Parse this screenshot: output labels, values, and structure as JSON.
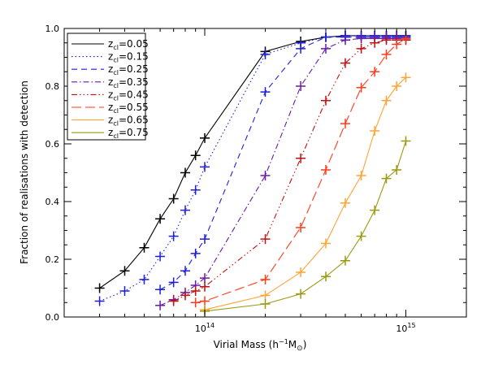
{
  "chart_data": {
    "type": "line",
    "xlabel_prefix": "Virial Mass (h",
    "xlabel_exp": "−1",
    "xlabel_unit": "M",
    "xlabel_sub": "⊙",
    "xlabel_suffix": ")",
    "ylabel": "Fraction of realisations with detection",
    "xscale": "log",
    "xlim": [
      20000000000000,
      2000000000000000
    ],
    "ylim": [
      0,
      1
    ],
    "yticks": [
      "0.0",
      "0.2",
      "0.4",
      "0.6",
      "0.8",
      "1.0"
    ],
    "xticks": [
      {
        "value": 100000000000000,
        "base": "10",
        "exp": "14"
      },
      {
        "value": 1000000000000000,
        "base": "10",
        "exp": "15"
      }
    ],
    "legend_position": "top-left",
    "legend_var": "z",
    "legend_sub": "cl",
    "series": [
      {
        "name": "0.05",
        "color": "#000000",
        "dash": "",
        "marker_color": "#000000",
        "x": [
          30000000000000.0,
          40000000000000.0,
          50000000000000.0,
          60000000000000.0,
          70000000000000.0,
          80000000000000.0,
          90000000000000.0,
          100000000000000.0,
          200000000000000.0,
          300000000000000.0,
          400000000000000.0,
          500000000000000.0,
          600000000000000.0,
          700000000000000.0,
          800000000000000.0,
          900000000000000.0,
          1000000000000000.0
        ],
        "y": [
          0.1,
          0.16,
          0.24,
          0.34,
          0.41,
          0.5,
          0.56,
          0.62,
          0.92,
          0.955,
          0.97,
          0.975,
          0.975,
          0.975,
          0.975,
          0.975,
          0.975
        ]
      },
      {
        "name": "0.15",
        "color": "#1f1fd8",
        "dash": "1.5,3",
        "marker_color": "#1f1fd8",
        "x": [
          30000000000000.0,
          40000000000000.0,
          50000000000000.0,
          60000000000000.0,
          70000000000000.0,
          80000000000000.0,
          90000000000000.0,
          100000000000000.0,
          200000000000000.0,
          300000000000000.0,
          400000000000000.0,
          500000000000000.0,
          600000000000000.0,
          700000000000000.0,
          800000000000000.0,
          900000000000000.0,
          1000000000000000.0
        ],
        "y": [
          0.055,
          0.09,
          0.13,
          0.21,
          0.28,
          0.37,
          0.44,
          0.52,
          0.91,
          0.95,
          0.97,
          0.975,
          0.975,
          0.975,
          0.975,
          0.975,
          0.975
        ]
      },
      {
        "name": "0.25",
        "color": "#1f1fd8",
        "dash": "7,5",
        "marker_color": "#1f1fd8",
        "x": [
          60000000000000.0,
          70000000000000.0,
          80000000000000.0,
          90000000000000.0,
          100000000000000.0,
          200000000000000.0,
          300000000000000.0,
          400000000000000.0,
          500000000000000.0,
          600000000000000.0,
          700000000000000.0,
          800000000000000.0,
          900000000000000.0,
          1000000000000000.0
        ],
        "y": [
          0.095,
          0.12,
          0.16,
          0.22,
          0.27,
          0.78,
          0.93,
          0.97,
          0.97,
          0.97,
          0.97,
          0.97,
          0.97,
          0.97
        ]
      },
      {
        "name": "0.35",
        "color": "#6a1aa8",
        "dash": "7,3,1.5,3",
        "marker_color": "#6a1aa8",
        "x": [
          60000000000000.0,
          70000000000000.0,
          80000000000000.0,
          90000000000000.0,
          100000000000000.0,
          200000000000000.0,
          300000000000000.0,
          400000000000000.0,
          500000000000000.0,
          600000000000000.0,
          700000000000000.0,
          800000000000000.0,
          900000000000000.0,
          1000000000000000.0
        ],
        "y": [
          0.04,
          0.06,
          0.085,
          0.11,
          0.135,
          0.49,
          0.8,
          0.93,
          0.96,
          0.965,
          0.965,
          0.965,
          0.965,
          0.965
        ]
      },
      {
        "name": "0.45",
        "color": "#c01010",
        "dash": "7,3,1.5,3,1.5,3,1.5,3",
        "marker_color": "#c01010",
        "x": [
          70000000000000.0,
          80000000000000.0,
          90000000000000.0,
          100000000000000.0,
          200000000000000.0,
          300000000000000.0,
          400000000000000.0,
          500000000000000.0,
          600000000000000.0,
          700000000000000.0,
          800000000000000.0,
          900000000000000.0,
          1000000000000000.0
        ],
        "y": [
          0.055,
          0.075,
          0.09,
          0.105,
          0.27,
          0.55,
          0.75,
          0.88,
          0.93,
          0.95,
          0.96,
          0.96,
          0.96
        ]
      },
      {
        "name": "0.55",
        "color": "#ff3b1a",
        "dash": "12,5",
        "marker_color": "#ff3b1a",
        "x": [
          90000000000000.0,
          100000000000000.0,
          200000000000000.0,
          300000000000000.0,
          400000000000000.0,
          500000000000000.0,
          600000000000000.0,
          700000000000000.0,
          800000000000000.0,
          900000000000000.0,
          1000000000000000.0
        ],
        "y": [
          0.05,
          0.055,
          0.13,
          0.31,
          0.51,
          0.67,
          0.795,
          0.85,
          0.91,
          0.945,
          0.965
        ]
      },
      {
        "name": "0.65",
        "color": "#ffa336",
        "dash": "",
        "marker_color": "#ffa336",
        "x": [
          100000000000000.0,
          200000000000000.0,
          300000000000000.0,
          400000000000000.0,
          500000000000000.0,
          600000000000000.0,
          700000000000000.0,
          800000000000000.0,
          900000000000000.0,
          1000000000000000.0
        ],
        "y": [
          0.025,
          0.075,
          0.155,
          0.255,
          0.395,
          0.49,
          0.645,
          0.75,
          0.8,
          0.83
        ]
      },
      {
        "name": "0.75",
        "color": "#9a9a10",
        "dash": "",
        "marker_color": "#9a9a10",
        "x": [
          100000000000000.0,
          200000000000000.0,
          300000000000000.0,
          400000000000000.0,
          500000000000000.0,
          600000000000000.0,
          700000000000000.0,
          800000000000000.0,
          900000000000000.0,
          1000000000000000.0
        ],
        "y": [
          0.02,
          0.045,
          0.08,
          0.14,
          0.195,
          0.28,
          0.37,
          0.48,
          0.51,
          0.61
        ]
      }
    ]
  }
}
